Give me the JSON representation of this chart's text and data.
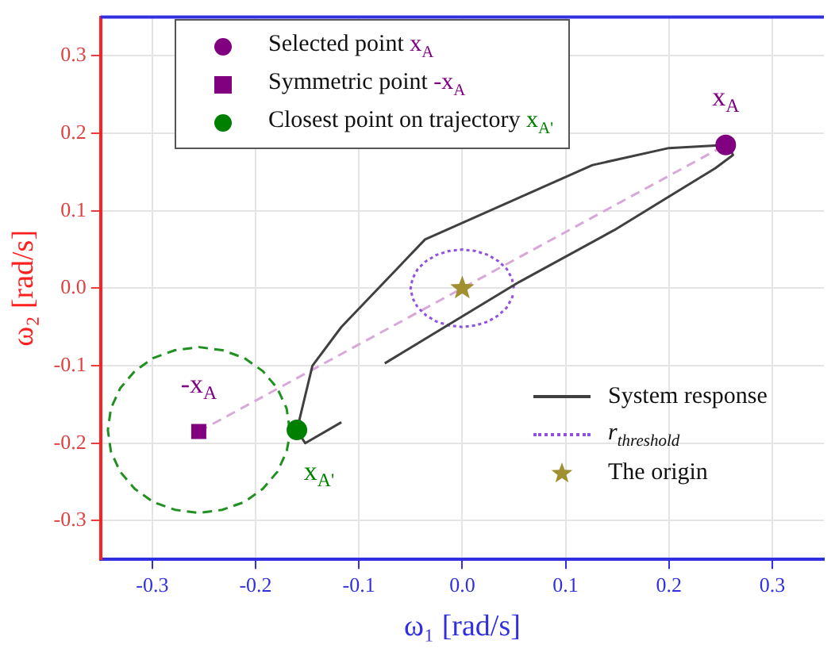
{
  "chart_data": {
    "type": "line",
    "xlabel": "ω₁ [rad/s]",
    "ylabel": "ω₂ [rad/s]",
    "xlim": [
      -0.35,
      0.35
    ],
    "ylim": [
      -0.35,
      0.35
    ],
    "xticks": [
      {
        "value": -0.3,
        "label": "-0.3"
      },
      {
        "value": -0.2,
        "label": "-0.2"
      },
      {
        "value": -0.1,
        "label": "-0.1"
      },
      {
        "value": 0,
        "label": "0.0"
      },
      {
        "value": 0.1,
        "label": "0.1"
      },
      {
        "value": 0.2,
        "label": "0.2"
      },
      {
        "value": 0.3,
        "label": "0.3"
      }
    ],
    "yticks": [
      {
        "value": -0.3,
        "label": "-0.3"
      },
      {
        "value": -0.2,
        "label": "-0.2"
      },
      {
        "value": -0.1,
        "label": "-0.1"
      },
      {
        "value": 0,
        "label": "0.0"
      },
      {
        "value": 0.1,
        "label": "0.1"
      },
      {
        "value": 0.2,
        "label": "0.2"
      },
      {
        "value": 0.3,
        "label": "0.3"
      }
    ],
    "grid": true,
    "legend": "top left",
    "series": [
      {
        "name": "Selected point x$_{A}$",
        "type": "scatter",
        "marker": "circle",
        "color": "#800080",
        "x": [
          0.255
        ],
        "values": [
          0.185
        ]
      },
      {
        "name": "Symmetric point -x$_{A}$",
        "type": "scatter",
        "marker": "square",
        "color": "#800080",
        "x": [
          -0.255
        ],
        "values": [
          -0.185
        ]
      },
      {
        "name": "Closest point on trajectory x$_{A'}$",
        "type": "scatter",
        "marker": "circle",
        "color": "#008000",
        "x": [
          -0.16
        ],
        "values": [
          -0.183
        ]
      },
      {
        "name": "System response",
        "line_style": "solid",
        "color": "#404040",
        "x": [
          -0.075,
          0.055,
          0.147,
          0.245,
          0.262,
          0.258,
          0.255,
          0.2,
          0.126,
          -0.036,
          -0.117,
          -0.145,
          -0.16,
          -0.152,
          -0.117
        ],
        "values": [
          -0.097,
          0.008,
          0.075,
          0.155,
          0.172,
          0.183,
          0.185,
          0.181,
          0.159,
          0.063,
          -0.05,
          -0.1,
          -0.183,
          -0.2,
          -0.173
        ]
      },
      {
        "name": "r$_{threshold}$",
        "line_style": "dotted",
        "color": "#9050e0",
        "x": [
          0.05,
          0.048,
          0.043,
          0.035,
          0.025,
          0.013,
          0,
          -0.013,
          -0.025,
          -0.035,
          -0.043,
          -0.048,
          -0.05,
          -0.048,
          -0.043,
          -0.035,
          -0.025,
          -0.013,
          0,
          0.013,
          0.025,
          0.035,
          0.043,
          0.048,
          0.0496
        ],
        "values": [
          0,
          0.013,
          0.025,
          0.035,
          0.043,
          0.048,
          0.05,
          0.048,
          0.043,
          0.035,
          0.025,
          0.013,
          0,
          -0.013,
          -0.025,
          -0.035,
          -0.043,
          -0.048,
          -0.05,
          -0.048,
          -0.043,
          -0.035,
          -0.025,
          -0.013,
          -0.0065
        ]
      },
      {
        "name": "The origin",
        "type": "scatter",
        "marker": "star",
        "color": "#a09030",
        "x": [
          0
        ],
        "values": [
          0
        ]
      },
      {
        "line_style": "dashed",
        "color": "#d8a8d8",
        "x": [
          -0.255,
          0.255
        ],
        "values": [
          -0.185,
          0.185
        ]
      },
      {
        "line_style": "dashed",
        "color": "#209020",
        "x": [
          -0.167,
          -0.17,
          -0.179,
          -0.193,
          -0.211,
          -0.232,
          -0.255,
          -0.278,
          -0.299,
          -0.317,
          -0.331,
          -0.34,
          -0.343,
          -0.34,
          -0.331,
          -0.317,
          -0.299,
          -0.278,
          -0.255,
          -0.232,
          -0.211,
          -0.193,
          -0.179,
          -0.17,
          -0.168
        ],
        "values": [
          -0.183,
          -0.155,
          -0.129,
          -0.107,
          -0.09,
          -0.08,
          -0.076,
          -0.08,
          -0.09,
          -0.107,
          -0.129,
          -0.155,
          -0.183,
          -0.211,
          -0.237,
          -0.259,
          -0.276,
          -0.286,
          -0.29,
          -0.286,
          -0.276,
          -0.259,
          -0.237,
          -0.211,
          -0.197
        ]
      }
    ],
    "annotations": [
      {
        "text": "x$_{A}$",
        "x": 0.255,
        "y": 0.185
      },
      {
        "text": "-x$_{A}$",
        "x": -0.255,
        "y": -0.185
      },
      {
        "text": "x$_{A'}$",
        "x": -0.16,
        "y": -0.183
      }
    ]
  }
}
